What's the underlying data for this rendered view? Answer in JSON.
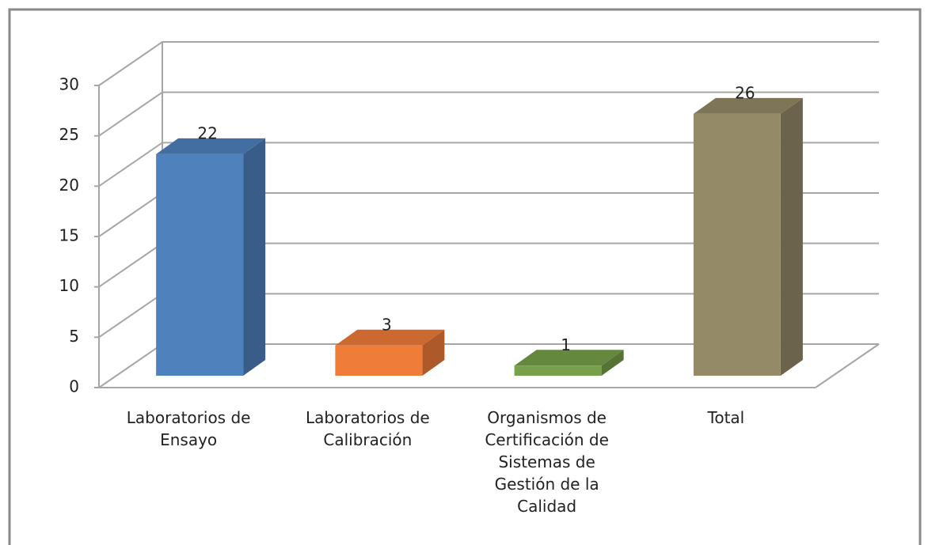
{
  "chart_data": {
    "type": "bar3d",
    "categories": [
      "Laboratorios de Ensayo",
      "Laboratorios de Calibración",
      "Organismos de Certificación de Sistemas de Gestión de la Calidad",
      "Total"
    ],
    "values": [
      22,
      3,
      1,
      26
    ],
    "colors": [
      "#4f81bd",
      "#f07c3a",
      "#77a04a",
      "#948a68"
    ],
    "ylim": [
      0,
      30
    ],
    "yticks": [
      0,
      5,
      10,
      15,
      20,
      25,
      30
    ],
    "grid": true
  }
}
